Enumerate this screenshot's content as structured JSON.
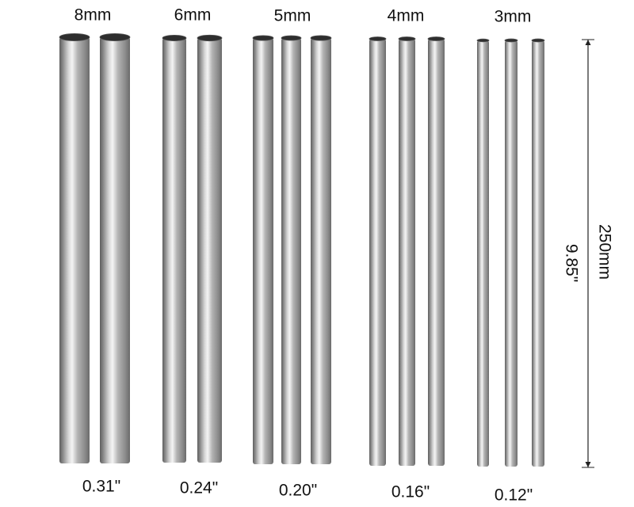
{
  "groups": [
    {
      "metric": "8mm",
      "imperial": "0.31\""
    },
    {
      "metric": "6mm",
      "imperial": "0.24\""
    },
    {
      "metric": "5mm",
      "imperial": "0.20\""
    },
    {
      "metric": "4mm",
      "imperial": "0.16\""
    },
    {
      "metric": "3mm",
      "imperial": "0.12\""
    }
  ],
  "length": {
    "metric": "250mm",
    "imperial": "9.85\""
  }
}
